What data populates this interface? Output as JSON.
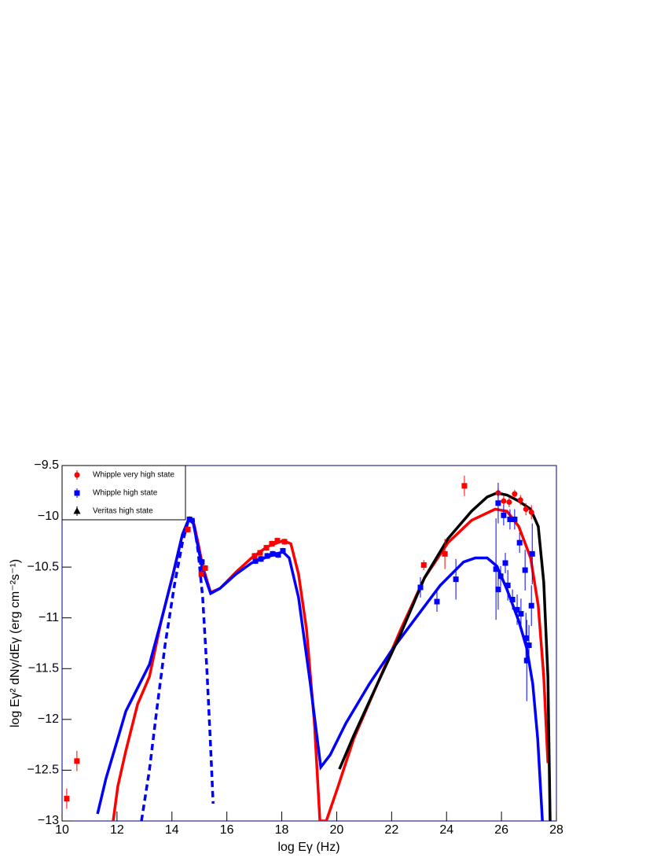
{
  "chart_data": {
    "type": "scatter",
    "xlabel": "log Eγ (Hz)",
    "ylabel": "log Eγ² dNγ/dEγ (erg cm⁻²s⁻¹)",
    "xlim": [
      10,
      28
    ],
    "ylim": [
      -13,
      -9.5
    ],
    "xticks": [
      10,
      12,
      14,
      16,
      18,
      20,
      22,
      24,
      26,
      28
    ],
    "yticks": [
      {
        "value": -13,
        "label": "−13"
      },
      {
        "value": -12.5,
        "label": "−12.5"
      },
      {
        "value": -12,
        "label": "−12"
      },
      {
        "value": -11.5,
        "label": "−11.5"
      },
      {
        "value": -11,
        "label": "−11"
      },
      {
        "value": -10.5,
        "label": "−10.5"
      },
      {
        "value": -10,
        "label": "−10"
      },
      {
        "value": -9.5,
        "label": "−9.5"
      }
    ],
    "legend": "top-left",
    "series": [
      {
        "name": "Whipple very high state",
        "color": "#ff0000",
        "marker": "circle",
        "x": [
          25.88,
          26.08,
          26.28,
          26.48,
          26.69,
          26.89,
          27.09
        ],
        "values": [
          -9.77,
          -9.85,
          -9.86,
          -9.78,
          -9.84,
          -9.93,
          -9.96
        ],
        "errors": [
          0.05,
          0.05,
          0.05,
          0.04,
          0.05,
          0.06,
          0.07
        ]
      },
      {
        "name": "Whipple high state",
        "color": "#0000ff",
        "marker": "square",
        "x": [
          14.64,
          15.09,
          17.04,
          17.24,
          17.47,
          17.67,
          17.87,
          18.04,
          23.05,
          23.65,
          24.34,
          25.8,
          25.88,
          25.88,
          25.97,
          26.08,
          26.14,
          26.23,
          26.31,
          26.4,
          26.48,
          26.57,
          26.66,
          26.71,
          26.86,
          26.89,
          26.92,
          27.0,
          27.09,
          27.12
        ],
        "values": [
          -10.03,
          -10.45,
          -10.44,
          -10.42,
          -10.39,
          -10.37,
          -10.38,
          -10.34,
          -10.7,
          -10.84,
          -10.62,
          -10.52,
          -9.87,
          -10.72,
          -10.59,
          -9.99,
          -10.46,
          -10.68,
          -10.03,
          -10.82,
          -10.03,
          -10.92,
          -10.26,
          -10.96,
          -10.53,
          -11.2,
          -11.42,
          -11.27,
          -10.88,
          -10.37
        ],
        "errors": [
          0.03,
          0.03,
          0.03,
          0.03,
          0.03,
          0.03,
          0.03,
          0.03,
          0.1,
          0.1,
          0.2,
          0.5,
          0.2,
          0.2,
          0.1,
          0.1,
          0.1,
          0.15,
          0.1,
          0.1,
          0.1,
          0.15,
          0.1,
          0.15,
          0.2,
          0.25,
          0.4,
          0.2,
          0.2,
          0.3
        ]
      },
      {
        "name": "Veritas high state",
        "color": "#000000",
        "marker": "triangle",
        "x": [],
        "values": [],
        "errors": []
      },
      {
        "color": "#ff0000",
        "marker": "square",
        "x": [
          10.17,
          10.54,
          14.58,
          15.07,
          15.21,
          17.01,
          17.21,
          17.44,
          17.64,
          17.84,
          18.1,
          23.17,
          23.94,
          24.65
        ],
        "values": [
          -12.78,
          -12.41,
          -10.13,
          -10.57,
          -10.51,
          -10.39,
          -10.36,
          -10.31,
          -10.27,
          -10.24,
          -10.25,
          -10.48,
          -10.37,
          -9.7
        ],
        "errors": [
          0.1,
          0.1,
          0.03,
          0.03,
          0.03,
          0.03,
          0.03,
          0.03,
          0.03,
          0.03,
          0.03,
          0.05,
          0.15,
          0.1
        ]
      }
    ],
    "curves": [
      {
        "color": "#ff0000",
        "dash": false,
        "x": [
          11.86,
          12.03,
          12.32,
          12.75,
          13.18,
          13.61,
          14.04,
          14.38,
          14.61,
          14.78,
          14.95,
          15.12,
          15.41,
          15.75,
          16.33,
          16.9,
          17.47,
          18.04,
          18.33,
          18.61,
          18.9,
          19.19,
          19.39,
          19.62,
          20.05,
          20.62,
          21.48,
          22.34,
          23.19,
          24.05,
          24.91,
          25.77,
          26.2,
          26.63,
          27.06,
          27.34,
          27.54,
          27.69
        ],
        "values": [
          -13.0,
          -12.66,
          -12.31,
          -11.85,
          -11.58,
          -11.03,
          -10.57,
          -10.18,
          -10.03,
          -10.05,
          -10.26,
          -10.49,
          -10.75,
          -10.71,
          -10.55,
          -10.41,
          -10.3,
          -10.24,
          -10.27,
          -10.57,
          -11.11,
          -12.04,
          -13.0,
          -13.0,
          -12.66,
          -12.19,
          -11.65,
          -11.11,
          -10.61,
          -10.26,
          -10.04,
          -9.93,
          -9.95,
          -10.1,
          -10.41,
          -10.88,
          -11.58,
          -12.43
        ]
      },
      {
        "color": "#0000ff",
        "dash": false,
        "x": [
          11.29,
          11.6,
          12.03,
          12.32,
          12.75,
          13.18,
          13.61,
          14.04,
          14.38,
          14.61,
          14.78,
          14.95,
          15.12,
          15.41,
          15.75,
          16.33,
          16.9,
          17.47,
          18.04,
          18.27,
          18.61,
          19.04,
          19.42,
          19.76,
          20.33,
          21.19,
          22.05,
          22.91,
          23.77,
          24.62,
          25.05,
          25.48,
          25.83,
          26.2,
          26.63,
          26.92,
          27.14,
          27.32,
          27.49
        ],
        "values": [
          -12.93,
          -12.58,
          -12.19,
          -11.92,
          -11.69,
          -11.46,
          -11.03,
          -10.57,
          -10.18,
          -10.03,
          -10.07,
          -10.3,
          -10.53,
          -10.76,
          -10.71,
          -10.57,
          -10.46,
          -10.4,
          -10.35,
          -10.41,
          -10.8,
          -11.65,
          -12.47,
          -12.35,
          -12.04,
          -11.65,
          -11.3,
          -10.99,
          -10.68,
          -10.45,
          -10.41,
          -10.41,
          -10.49,
          -10.72,
          -11.03,
          -11.3,
          -11.65,
          -12.19,
          -13.0
        ]
      },
      {
        "color": "#0000ff",
        "dash": true,
        "x": [
          12.89,
          13.18,
          13.46,
          13.75,
          14.09,
          14.38,
          14.61,
          14.78,
          14.95,
          15.12,
          15.27,
          15.41,
          15.5
        ],
        "values": [
          -13.0,
          -12.5,
          -11.88,
          -11.27,
          -10.68,
          -10.26,
          -10.03,
          -10.03,
          -10.34,
          -10.8,
          -11.5,
          -12.27,
          -12.83
        ]
      },
      {
        "color": "#000000",
        "dash": false,
        "x": [
          20.1,
          20.62,
          21.48,
          22.34,
          23.19,
          24.05,
          24.91,
          25.48,
          25.83,
          26.2,
          26.63,
          27.06,
          27.34,
          27.54,
          27.69,
          27.77
        ],
        "values": [
          -12.49,
          -12.16,
          -11.65,
          -11.15,
          -10.61,
          -10.22,
          -9.95,
          -9.81,
          -9.77,
          -9.79,
          -9.85,
          -9.93,
          -10.1,
          -10.65,
          -11.58,
          -13.0
        ]
      }
    ]
  }
}
